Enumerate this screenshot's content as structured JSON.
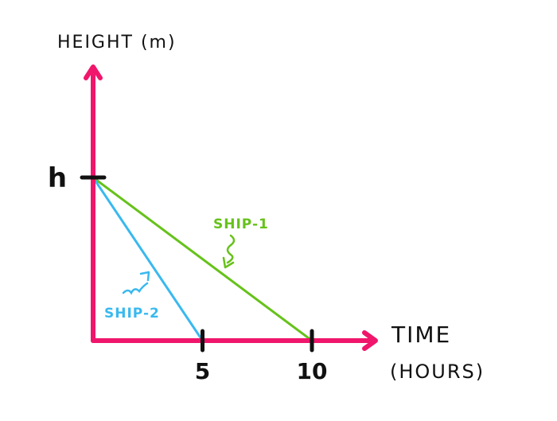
{
  "chart_data": {
    "type": "line",
    "ylabel": "HEIGHT (m)",
    "xlabel_line1": "TIME",
    "xlabel_line2": "(HOURS)",
    "x_ticks": [
      {
        "value": 5,
        "label": "5"
      },
      {
        "value": 10,
        "label": "10"
      }
    ],
    "y_ticks": [
      {
        "value": 1,
        "label": "h"
      }
    ],
    "series": [
      {
        "name": "SHIP-1",
        "color": "#66c21a",
        "points": [
          {
            "x": 0,
            "y": 1
          },
          {
            "x": 10,
            "y": 0
          }
        ]
      },
      {
        "name": "SHIP-2",
        "color": "#39b9ef",
        "points": [
          {
            "x": 0,
            "y": 1
          },
          {
            "x": 5,
            "y": 0
          }
        ]
      }
    ],
    "axis_color": "#f0166b",
    "grid": false
  }
}
